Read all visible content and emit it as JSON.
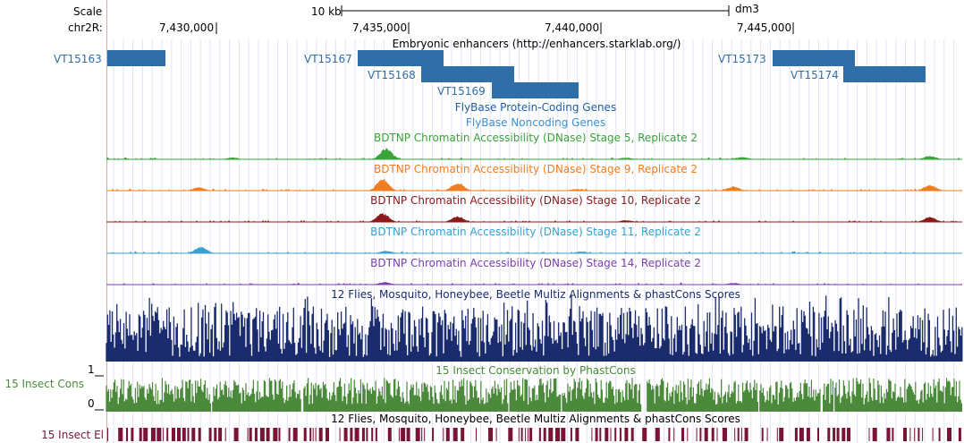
{
  "ruler": {
    "scale_label": "Scale",
    "chrom_label": "chr2R:",
    "scale_bar_text": "10 kb",
    "assembly": "dm3",
    "ticks": [
      "7,430,000",
      "7,435,000",
      "7,440,000",
      "7,445,000"
    ]
  },
  "tracks": {
    "enhancers": {
      "title": "Embryonic enhancers (http://enhancers.starklab.org/)",
      "color": "#2f6ea6",
      "features": [
        "VT15163",
        "VT15167",
        "VT15168",
        "VT15169",
        "VT15173",
        "VT15174"
      ]
    },
    "protein_coding": {
      "title": "FlyBase Protein-Coding Genes",
      "color": "#1e5fa8"
    },
    "noncoding": {
      "title": "FlyBase Noncoding Genes",
      "color": "#3a8fd6"
    },
    "dnase": [
      {
        "title": "BDTNP Chromatin Accessibility (DNase) Stage 5, Replicate 2",
        "color": "#3aa33a"
      },
      {
        "title": "BDTNP Chromatin Accessibility (DNase) Stage 9, Replicate 2",
        "color": "#f07d1f"
      },
      {
        "title": "BDTNP Chromatin Accessibility (DNase) Stage 10, Replicate 2",
        "color": "#8b1a1a"
      },
      {
        "title": "BDTNP Chromatin Accessibility (DNase) Stage 11, Replicate 2",
        "color": "#39a0d0"
      },
      {
        "title": "BDTNP Chromatin Accessibility (DNase) Stage 14, Replicate 2",
        "color": "#7a3fb0"
      }
    ],
    "multiz": {
      "title": "12 Flies, Mosquito, Honeybee, Beetle Multiz Alignments & phastCons Scores",
      "color": "#1a2b6e"
    },
    "insect_cons": {
      "title": "15 Insect Conservation by PhastCons",
      "side_label": "15 Insect Cons",
      "axis_max": "1",
      "axis_min": "0",
      "color": "#4a8a3a"
    },
    "insect_el": {
      "title": "12 Flies, Mosquito, Honeybee, Beetle Multiz Alignments & phastCons Scores",
      "side_label": "15 Insect El",
      "color": "#7a1436"
    }
  }
}
